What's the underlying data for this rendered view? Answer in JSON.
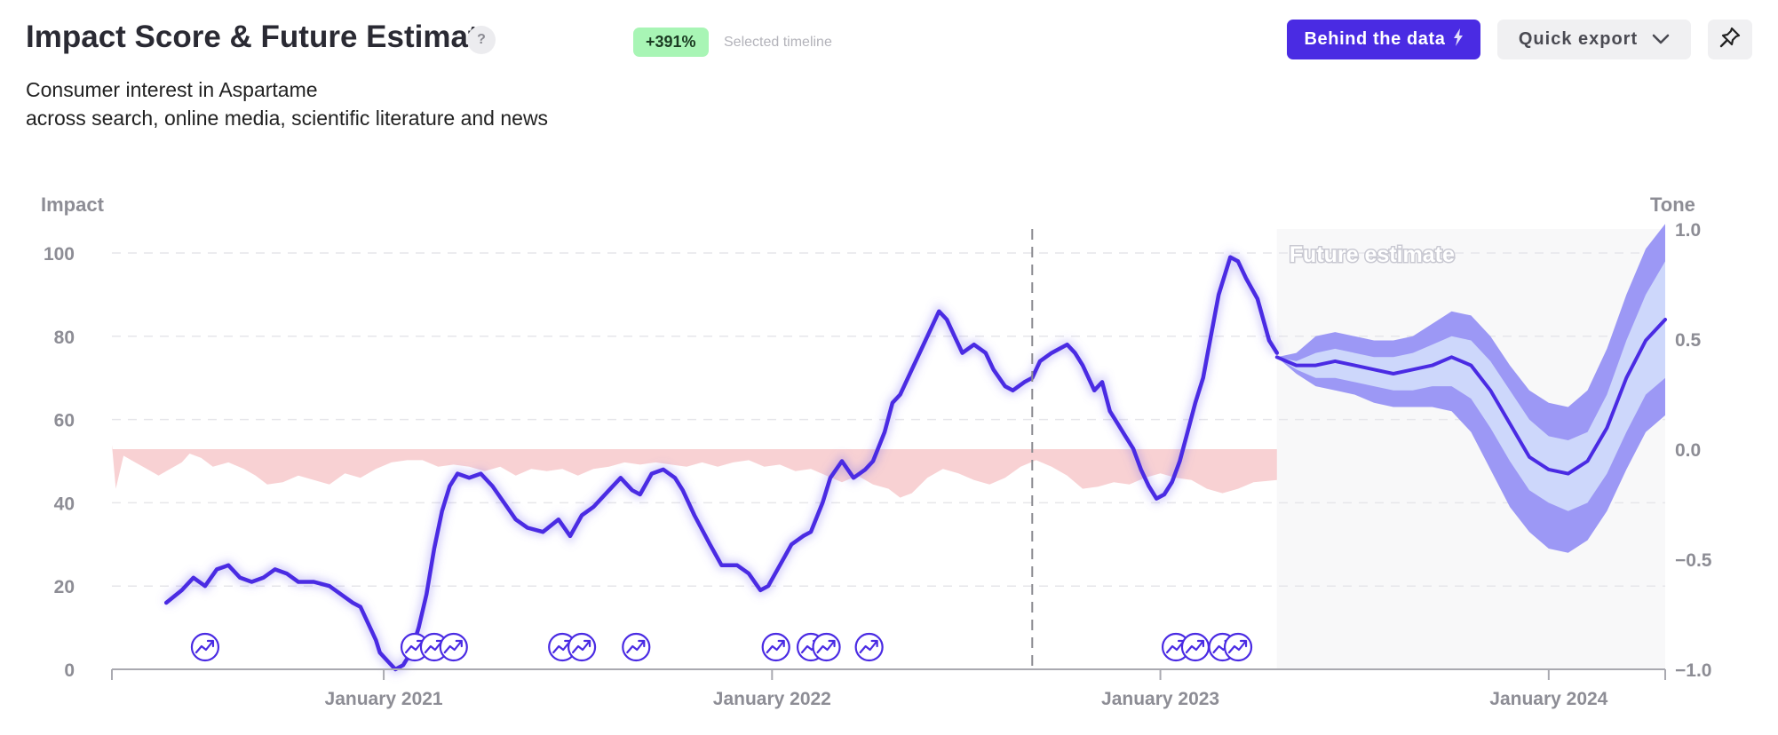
{
  "header": {
    "title": "Impact Score & Future Estimate",
    "help": "?",
    "badge": "+391%",
    "badge_caption": "Selected timeline",
    "subtitle_line1": "Consumer interest in Aspartame",
    "subtitle_line2": "across search, online media, scientific literature and news"
  },
  "toolbar": {
    "behind_data_label": "Behind the data",
    "quick_export_label": "Quick export",
    "pin_icon": "pin-icon",
    "lightning_icon": "lightning-icon",
    "chevron_icon": "chevron-down-icon"
  },
  "colors": {
    "line": "#4a2be3",
    "band_outer": "#9c98f5",
    "band_inner": "#cdd7fb",
    "tone_fill": "#f7c9cb",
    "forecast_bg": "#f8f8f9",
    "axis_text": "#8d8d95"
  },
  "chart_data": {
    "type": "line",
    "title": "Impact Score & Future Estimate",
    "xlabel": "",
    "ylabel": "Impact",
    "y2label": "Tone",
    "ylim": [
      0,
      100
    ],
    "y2lim": [
      -1.0,
      1.0
    ],
    "yticks": [
      "0",
      "20",
      "40",
      "60",
      "80",
      "100"
    ],
    "y2ticks": [
      "−1.0",
      "−0.5",
      "0.0",
      "0.5",
      "1.0"
    ],
    "xticks": [
      {
        "label": "January 2021",
        "x": 2021.0
      },
      {
        "label": "January 2022",
        "x": 2022.0
      },
      {
        "label": "January 2023",
        "x": 2023.0
      },
      {
        "label": "January 2024",
        "x": 2024.0
      }
    ],
    "xlim": [
      2020.3,
      2024.3
    ],
    "selected_marker_x": 2022.67,
    "forecast_start": 2023.3,
    "forecast_label": "Future estimate",
    "grid": true,
    "series": [
      {
        "kind": "impact",
        "points": [
          [
            2020.44,
            16
          ],
          [
            2020.48,
            19
          ],
          [
            2020.51,
            22
          ],
          [
            2020.54,
            20
          ],
          [
            2020.57,
            24
          ],
          [
            2020.6,
            25
          ],
          [
            2020.63,
            22
          ],
          [
            2020.66,
            21
          ],
          [
            2020.69,
            22
          ],
          [
            2020.72,
            24
          ],
          [
            2020.75,
            23
          ],
          [
            2020.78,
            21
          ],
          [
            2020.82,
            21
          ],
          [
            2020.86,
            20
          ],
          [
            2020.89,
            18
          ],
          [
            2020.92,
            16
          ],
          [
            2020.94,
            15
          ],
          [
            2020.96,
            11
          ],
          [
            2020.98,
            7
          ],
          [
            2020.99,
            4
          ],
          [
            2021.01,
            2
          ],
          [
            2021.03,
            0
          ],
          [
            2021.05,
            1
          ],
          [
            2021.07,
            4
          ],
          [
            2021.09,
            10
          ],
          [
            2021.11,
            18
          ],
          [
            2021.13,
            29
          ],
          [
            2021.15,
            38
          ],
          [
            2021.17,
            44
          ],
          [
            2021.19,
            47
          ],
          [
            2021.22,
            46
          ],
          [
            2021.25,
            47
          ],
          [
            2021.28,
            44
          ],
          [
            2021.31,
            40
          ],
          [
            2021.34,
            36
          ],
          [
            2021.37,
            34
          ],
          [
            2021.41,
            33
          ],
          [
            2021.45,
            36
          ],
          [
            2021.48,
            32
          ],
          [
            2021.51,
            37
          ],
          [
            2021.54,
            39
          ],
          [
            2021.58,
            43
          ],
          [
            2021.61,
            46
          ],
          [
            2021.64,
            43
          ],
          [
            2021.66,
            42
          ],
          [
            2021.69,
            47
          ],
          [
            2021.72,
            48
          ],
          [
            2021.75,
            46
          ],
          [
            2021.77,
            43
          ],
          [
            2021.8,
            37
          ],
          [
            2021.84,
            30
          ],
          [
            2021.87,
            25
          ],
          [
            2021.91,
            25
          ],
          [
            2021.94,
            23
          ],
          [
            2021.97,
            19
          ],
          [
            2021.99,
            20
          ],
          [
            2022.02,
            25
          ],
          [
            2022.05,
            30
          ],
          [
            2022.08,
            32
          ],
          [
            2022.1,
            33
          ],
          [
            2022.13,
            40
          ],
          [
            2022.15,
            46
          ],
          [
            2022.18,
            50
          ],
          [
            2022.21,
            46
          ],
          [
            2022.24,
            48
          ],
          [
            2022.26,
            50
          ],
          [
            2022.29,
            57
          ],
          [
            2022.31,
            64
          ],
          [
            2022.33,
            66
          ],
          [
            2022.36,
            72
          ],
          [
            2022.38,
            76
          ],
          [
            2022.41,
            82
          ],
          [
            2022.43,
            86
          ],
          [
            2022.45,
            84
          ],
          [
            2022.47,
            80
          ],
          [
            2022.49,
            76
          ],
          [
            2022.52,
            78
          ],
          [
            2022.55,
            76
          ],
          [
            2022.57,
            72
          ],
          [
            2022.6,
            68
          ],
          [
            2022.62,
            67
          ],
          [
            2022.65,
            69
          ],
          [
            2022.67,
            70
          ],
          [
            2022.69,
            74
          ],
          [
            2022.72,
            76
          ],
          [
            2022.74,
            77
          ],
          [
            2022.76,
            78
          ],
          [
            2022.78,
            76
          ],
          [
            2022.8,
            73
          ],
          [
            2022.83,
            67
          ],
          [
            2022.85,
            69
          ],
          [
            2022.87,
            62
          ],
          [
            2022.89,
            59
          ],
          [
            2022.91,
            56
          ],
          [
            2022.93,
            53
          ],
          [
            2022.95,
            48
          ],
          [
            2022.97,
            44
          ],
          [
            2022.99,
            41
          ],
          [
            2023.01,
            42
          ],
          [
            2023.03,
            45
          ],
          [
            2023.05,
            50
          ],
          [
            2023.07,
            57
          ],
          [
            2023.09,
            64
          ],
          [
            2023.11,
            70
          ],
          [
            2023.13,
            80
          ],
          [
            2023.15,
            90
          ],
          [
            2023.18,
            99
          ],
          [
            2023.2,
            98
          ],
          [
            2023.22,
            94
          ],
          [
            2023.25,
            89
          ],
          [
            2023.28,
            79
          ],
          [
            2023.3,
            76
          ]
        ]
      },
      {
        "kind": "tone",
        "points": [
          [
            2020.3,
            0.02
          ],
          [
            2020.31,
            -0.18
          ],
          [
            2020.33,
            -0.03
          ],
          [
            2020.36,
            -0.06
          ],
          [
            2020.39,
            -0.09
          ],
          [
            2020.42,
            -0.12
          ],
          [
            2020.45,
            -0.09
          ],
          [
            2020.48,
            -0.06
          ],
          [
            2020.5,
            -0.02
          ],
          [
            2020.53,
            -0.04
          ],
          [
            2020.56,
            -0.08
          ],
          [
            2020.6,
            -0.06
          ],
          [
            2020.64,
            -0.09
          ],
          [
            2020.67,
            -0.12
          ],
          [
            2020.7,
            -0.16
          ],
          [
            2020.74,
            -0.15
          ],
          [
            2020.78,
            -0.12
          ],
          [
            2020.82,
            -0.14
          ],
          [
            2020.86,
            -0.16
          ],
          [
            2020.9,
            -0.11
          ],
          [
            2020.94,
            -0.13
          ],
          [
            2020.98,
            -0.09
          ],
          [
            2021.02,
            -0.06
          ],
          [
            2021.06,
            -0.05
          ],
          [
            2021.1,
            -0.05
          ],
          [
            2021.14,
            -0.08
          ],
          [
            2021.18,
            -0.07
          ],
          [
            2021.22,
            -0.08
          ],
          [
            2021.26,
            -0.1
          ],
          [
            2021.3,
            -0.08
          ],
          [
            2021.34,
            -0.12
          ],
          [
            2021.38,
            -0.09
          ],
          [
            2021.42,
            -0.1
          ],
          [
            2021.46,
            -0.09
          ],
          [
            2021.5,
            -0.12
          ],
          [
            2021.54,
            -0.09
          ],
          [
            2021.58,
            -0.08
          ],
          [
            2021.62,
            -0.06
          ],
          [
            2021.66,
            -0.07
          ],
          [
            2021.7,
            -0.06
          ],
          [
            2021.74,
            -0.07
          ],
          [
            2021.78,
            -0.08
          ],
          [
            2021.82,
            -0.06
          ],
          [
            2021.86,
            -0.08
          ],
          [
            2021.9,
            -0.06
          ],
          [
            2021.94,
            -0.05
          ],
          [
            2021.98,
            -0.08
          ],
          [
            2022.02,
            -0.07
          ],
          [
            2022.06,
            -0.1
          ],
          [
            2022.1,
            -0.09
          ],
          [
            2022.14,
            -0.12
          ],
          [
            2022.18,
            -0.15
          ],
          [
            2022.22,
            -0.12
          ],
          [
            2022.26,
            -0.16
          ],
          [
            2022.3,
            -0.18
          ],
          [
            2022.33,
            -0.22
          ],
          [
            2022.36,
            -0.2
          ],
          [
            2022.4,
            -0.13
          ],
          [
            2022.44,
            -0.09
          ],
          [
            2022.48,
            -0.11
          ],
          [
            2022.52,
            -0.14
          ],
          [
            2022.56,
            -0.16
          ],
          [
            2022.6,
            -0.13
          ],
          [
            2022.64,
            -0.08
          ],
          [
            2022.68,
            -0.05
          ],
          [
            2022.72,
            -0.08
          ],
          [
            2022.76,
            -0.12
          ],
          [
            2022.8,
            -0.18
          ],
          [
            2022.84,
            -0.17
          ],
          [
            2022.88,
            -0.15
          ],
          [
            2022.92,
            -0.16
          ],
          [
            2022.96,
            -0.13
          ],
          [
            2023.0,
            -0.11
          ],
          [
            2023.04,
            -0.13
          ],
          [
            2023.08,
            -0.14
          ],
          [
            2023.12,
            -0.18
          ],
          [
            2023.16,
            -0.2
          ],
          [
            2023.2,
            -0.18
          ],
          [
            2023.24,
            -0.15
          ],
          [
            2023.3,
            -0.14
          ]
        ]
      },
      {
        "kind": "forecast",
        "x": [
          2023.3,
          2023.35,
          2023.4,
          2023.45,
          2023.5,
          2023.55,
          2023.6,
          2023.65,
          2023.7,
          2023.75,
          2023.8,
          2023.85,
          2023.9,
          2023.95,
          2024.0,
          2024.05,
          2024.1,
          2024.15,
          2024.2,
          2024.25,
          2024.3
        ],
        "mid": [
          75,
          73,
          73,
          74,
          73,
          72,
          71,
          72,
          73,
          75,
          73,
          67,
          59,
          51,
          48,
          47,
          50,
          58,
          70,
          79,
          84
        ],
        "inner_low": [
          75,
          72,
          70,
          70,
          69,
          68,
          67,
          67,
          68,
          68,
          65,
          58,
          50,
          43,
          40,
          38,
          40,
          47,
          57,
          66,
          70
        ],
        "inner_high": [
          75,
          74,
          76,
          77,
          76,
          75,
          75,
          76,
          78,
          80,
          79,
          74,
          67,
          60,
          56,
          55,
          57,
          66,
          79,
          90,
          98
        ],
        "outer_low": [
          75,
          71,
          68,
          67,
          66,
          64,
          63,
          63,
          63,
          62,
          57,
          48,
          39,
          33,
          29,
          28,
          31,
          38,
          48,
          57,
          61
        ],
        "outer_high": [
          75,
          76,
          80,
          81,
          80,
          79,
          79,
          80,
          83,
          86,
          85,
          80,
          73,
          67,
          64,
          63,
          67,
          77,
          90,
          101,
          107
        ]
      }
    ],
    "event_markers": [
      2020.54,
      2021.08,
      2021.13,
      2021.18,
      2021.46,
      2021.51,
      2021.65,
      2022.01,
      2022.1,
      2022.14,
      2022.25,
      2023.04,
      2023.09,
      2023.16,
      2023.2
    ]
  }
}
